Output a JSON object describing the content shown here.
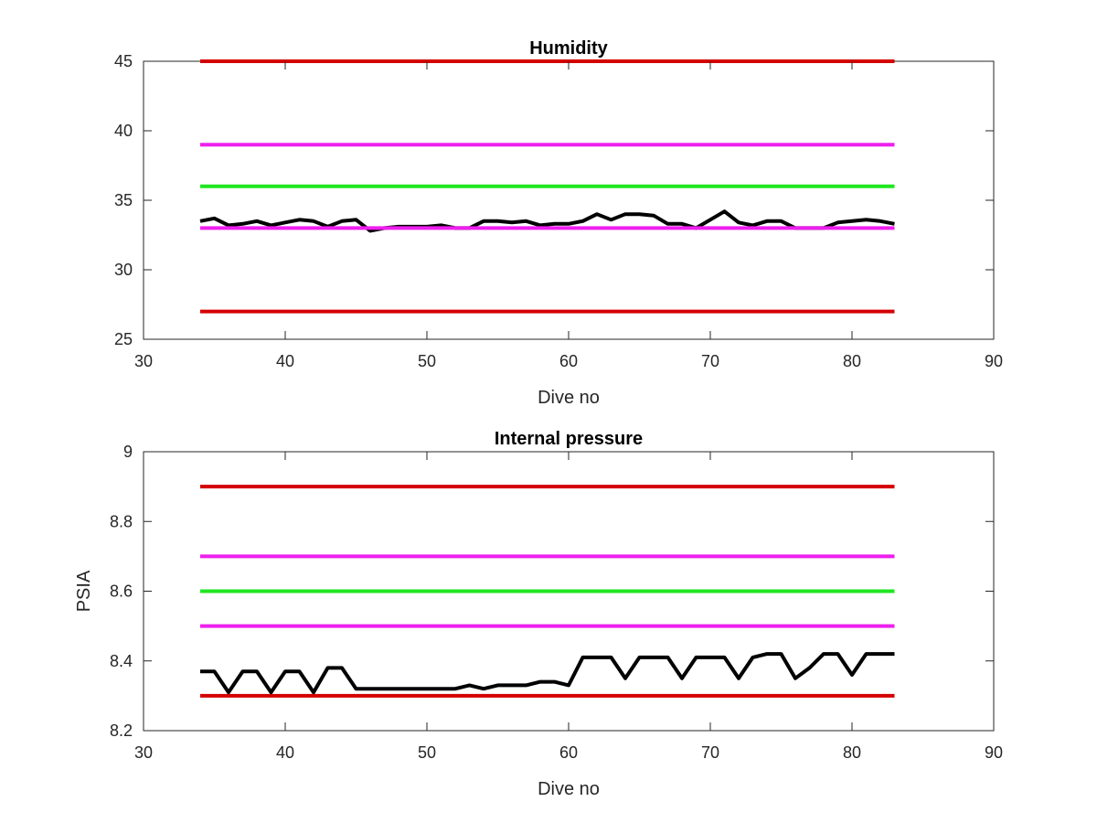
{
  "chart_data": [
    {
      "type": "line",
      "title": "Humidity",
      "xlabel": "Dive no",
      "ylabel": "",
      "xlim": [
        30,
        90
      ],
      "ylim": [
        25,
        45
      ],
      "xticks": [
        "30",
        "40",
        "50",
        "60",
        "70",
        "80",
        "90"
      ],
      "yticks": [
        "25",
        "30",
        "35",
        "40",
        "45"
      ],
      "grid": false,
      "series": [
        {
          "color": "#d40000",
          "x": [
            34,
            83
          ],
          "y": [
            45,
            45
          ]
        },
        {
          "color": "#ee1fee",
          "x": [
            34,
            83
          ],
          "y": [
            39,
            39
          ]
        },
        {
          "color": "#1fe61f",
          "x": [
            34,
            83
          ],
          "y": [
            36,
            36
          ]
        },
        {
          "color": "#000000",
          "x": [
            34,
            35,
            36,
            37,
            38,
            39,
            40,
            41,
            42,
            43,
            44,
            45,
            46,
            47,
            48,
            49,
            50,
            51,
            52,
            53,
            54,
            55,
            56,
            57,
            58,
            59,
            60,
            61,
            62,
            63,
            64,
            65,
            66,
            67,
            68,
            69,
            70,
            71,
            72,
            73,
            74,
            75,
            76,
            77,
            78,
            79,
            80,
            81,
            82,
            83
          ],
          "y": [
            33.5,
            33.7,
            33.2,
            33.3,
            33.5,
            33.2,
            33.4,
            33.6,
            33.5,
            33.1,
            33.5,
            33.6,
            32.8,
            33.0,
            33.1,
            33.1,
            33.1,
            33.2,
            33.0,
            33.0,
            33.5,
            33.5,
            33.4,
            33.5,
            33.2,
            33.3,
            33.3,
            33.5,
            34.0,
            33.6,
            34.0,
            34.0,
            33.9,
            33.3,
            33.3,
            33.0,
            33.6,
            34.2,
            33.4,
            33.2,
            33.5,
            33.5,
            33.0,
            33.0,
            33.0,
            33.4,
            33.5,
            33.6,
            33.5,
            33.3
          ]
        },
        {
          "color": "#ee1fee",
          "x": [
            34,
            83
          ],
          "y": [
            33,
            33
          ]
        },
        {
          "color": "#d40000",
          "x": [
            34,
            83
          ],
          "y": [
            27,
            27
          ]
        }
      ]
    },
    {
      "type": "line",
      "title": "Internal pressure",
      "xlabel": "Dive no",
      "ylabel": "PSIA",
      "xlim": [
        30,
        90
      ],
      "ylim": [
        8.2,
        9
      ],
      "xticks": [
        "30",
        "40",
        "50",
        "60",
        "70",
        "80",
        "90"
      ],
      "yticks": [
        "8.2",
        "8.4",
        "8.6",
        "8.8",
        "9"
      ],
      "grid": false,
      "series": [
        {
          "color": "#d40000",
          "x": [
            34,
            83
          ],
          "y": [
            8.9,
            8.9
          ]
        },
        {
          "color": "#ee1fee",
          "x": [
            34,
            83
          ],
          "y": [
            8.7,
            8.7
          ]
        },
        {
          "color": "#1fe61f",
          "x": [
            34,
            83
          ],
          "y": [
            8.6,
            8.6
          ]
        },
        {
          "color": "#ee1fee",
          "x": [
            34,
            83
          ],
          "y": [
            8.5,
            8.5
          ]
        },
        {
          "color": "#d40000",
          "x": [
            34,
            83
          ],
          "y": [
            8.3,
            8.3
          ]
        },
        {
          "color": "#000000",
          "x": [
            34,
            35,
            36,
            37,
            38,
            39,
            40,
            41,
            42,
            43,
            44,
            45,
            46,
            47,
            48,
            49,
            50,
            51,
            52,
            53,
            54,
            55,
            56,
            57,
            58,
            59,
            60,
            61,
            62,
            63,
            64,
            65,
            66,
            67,
            68,
            69,
            70,
            71,
            72,
            73,
            74,
            75,
            76,
            77,
            78,
            79,
            80,
            81,
            82,
            83
          ],
          "y": [
            8.37,
            8.37,
            8.31,
            8.37,
            8.37,
            8.31,
            8.37,
            8.37,
            8.31,
            8.38,
            8.38,
            8.32,
            8.32,
            8.32,
            8.32,
            8.32,
            8.32,
            8.32,
            8.32,
            8.33,
            8.32,
            8.33,
            8.33,
            8.33,
            8.34,
            8.34,
            8.33,
            8.41,
            8.41,
            8.41,
            8.35,
            8.41,
            8.41,
            8.41,
            8.35,
            8.41,
            8.41,
            8.41,
            8.35,
            8.41,
            8.42,
            8.42,
            8.35,
            8.38,
            8.42,
            8.42,
            8.36,
            8.42,
            8.42,
            8.42
          ]
        }
      ]
    }
  ]
}
